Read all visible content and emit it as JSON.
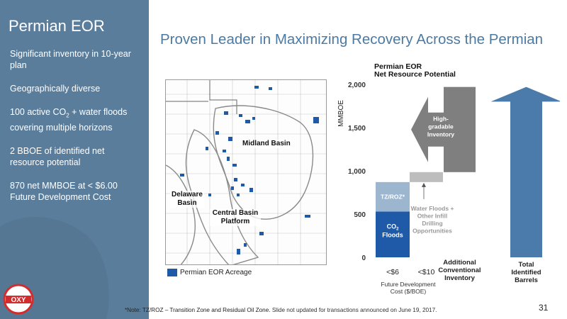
{
  "sidebar": {
    "title": "Permian EOR",
    "points": [
      {
        "text": "Significant inventory in 10-year plan"
      },
      {
        "text": "Geographically diverse"
      },
      {
        "pre": "100 active  CO",
        "sub": "2",
        "post": " + water floods covering multiple horizons"
      },
      {
        "text": "2 BBOE of identified net resource potential"
      },
      {
        "text": "870 net MMBOE at < $6.00 Future Development Cost"
      }
    ]
  },
  "main_title": "Proven Leader in Maximizing Recovery Across the Permian",
  "map": {
    "labels": {
      "midland": "Midland Basin",
      "delaware": "Delaware Basin",
      "central": "Central Basin Platform"
    },
    "legend": "Permian EOR Acreage"
  },
  "logo_text": "OXY",
  "footnote": {
    "main": "*Note: TZ/ROZ – Transition Zone and Residual Oil Zone.",
    "extra": " Slide not updated for transactions announced on June 19, 2017."
  },
  "page_number": "31",
  "colors": {
    "sidebar": "#5b7d9c",
    "title": "#4c7aa3",
    "co2": "#1e5aa8",
    "tzroz": "#9cb6d0",
    "water": "#bdbdbd",
    "arrow_gray": "#7f7f7f",
    "arrow_blue": "#4a7bab"
  },
  "chart_data": {
    "type": "bar",
    "title": "Permian EOR\nNet Resource Potential",
    "ylabel": "MMBOE",
    "ylim": [
      0,
      2000
    ],
    "yticks": [
      0,
      500,
      1000,
      1500,
      2000
    ],
    "ytick_labels": [
      "0",
      "500",
      "1,000",
      "1,500",
      "2,000"
    ],
    "categories": [
      "<$6",
      "<$10",
      "Additional Conventional Inventory",
      "Total Identified Barrels"
    ],
    "xlabel": "Future Development Cost ($/BOE)",
    "segments": [
      {
        "category": "<$6",
        "label": "CO2 Floods",
        "label_main": "CO",
        "label_sub": "2",
        "label_rest": "Floods",
        "start": 0,
        "end": 530
      },
      {
        "category": "<$6",
        "label": "TZ/ROZ*",
        "start": 530,
        "end": 870
      },
      {
        "category": "<$10",
        "label": "Water Floods + Other Infill Drilling Opportunities",
        "start": 870,
        "end": 985
      },
      {
        "category": "Additional Conventional Inventory",
        "label": "High-gradable Inventory",
        "start": 985,
        "end": 1970
      },
      {
        "category": "Total Identified Barrels",
        "label": "",
        "start": 0,
        "end": 1970
      }
    ],
    "annotations": {
      "water_floods": [
        "Water Floods +",
        "Other Infill",
        "Drilling",
        "Opportunities"
      ],
      "high_gradable": [
        "High-",
        "gradable",
        "Inventory"
      ],
      "additional": [
        "Additional",
        "Conventional",
        "Inventory"
      ],
      "total": [
        "Total",
        "Identified",
        "Barrels"
      ],
      "xlabel_lines": [
        "Future Development",
        "Cost ($/BOE)"
      ]
    }
  }
}
